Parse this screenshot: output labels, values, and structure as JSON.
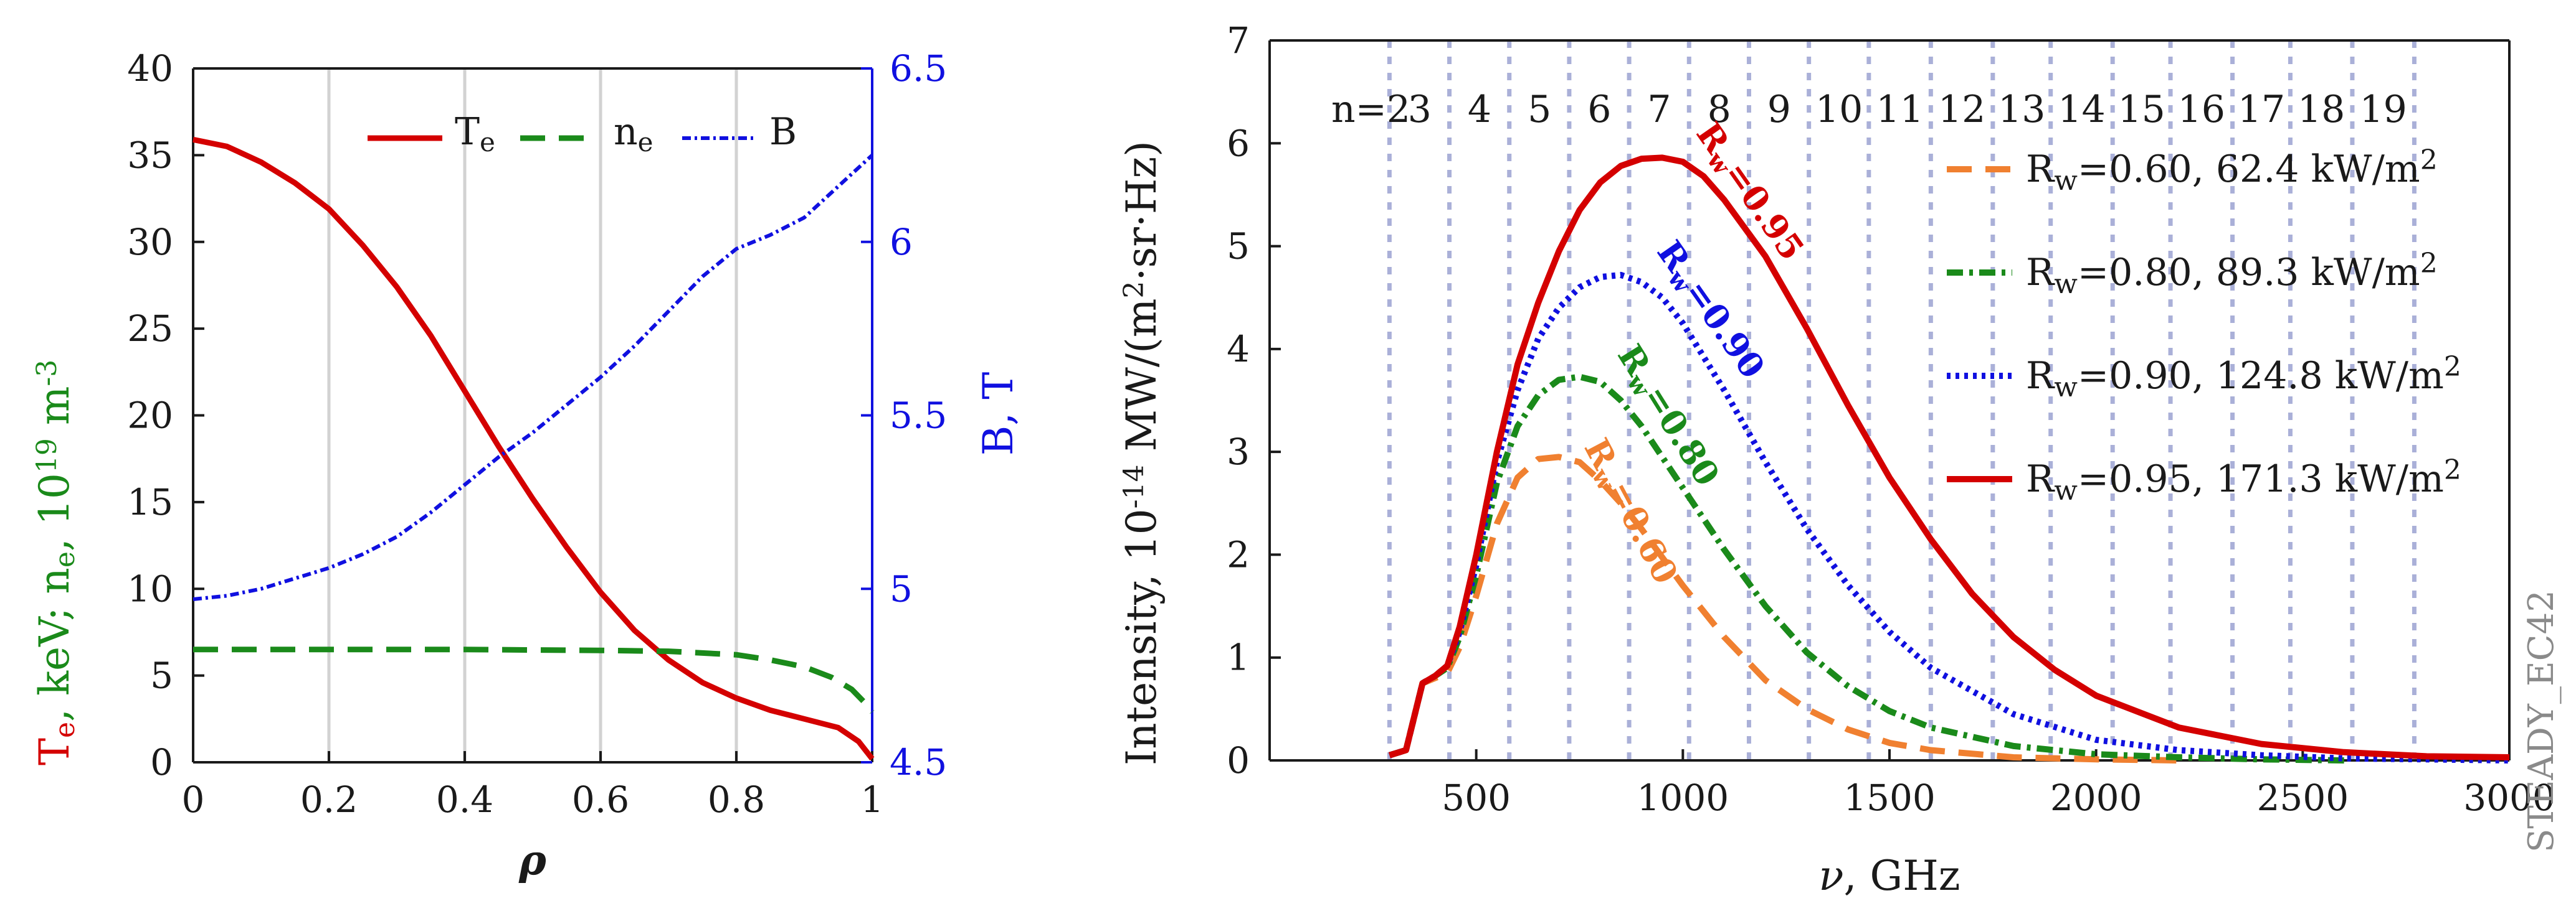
{
  "figure": {
    "watermark": "STEADY_EC42"
  },
  "chart_data": [
    {
      "type": "line",
      "panel": "left",
      "xlabel": "ρ",
      "ylabel_left_parts": [
        "T",
        "e",
        ", keV; n",
        "e",
        ", 10",
        "19",
        " m",
        "-3"
      ],
      "ylabel_left_colors": [
        "#d40000",
        "#d40000",
        "#1a8a1a",
        "#1a8a1a",
        "#1a8a1a",
        "#1a8a1a",
        "#1a8a1a",
        "#1a8a1a"
      ],
      "ylabel_right": "B, T",
      "xlim": [
        0,
        1
      ],
      "ylim": [
        0,
        40
      ],
      "ylim_right": [
        4.5,
        6.5
      ],
      "x_ticks": [
        0,
        0.2,
        0.4,
        0.6,
        0.8,
        1
      ],
      "x_tick_labels": [
        "0",
        "0.2",
        "0.4",
        "0.6",
        "0.8",
        "1"
      ],
      "y_ticks": [
        0,
        5,
        10,
        15,
        20,
        25,
        30,
        35,
        40
      ],
      "y_tick_labels": [
        "0",
        "5",
        "10",
        "15",
        "20",
        "25",
        "30",
        "35",
        "40"
      ],
      "y_ticks_right": [
        4.5,
        5,
        5.5,
        6,
        6.5
      ],
      "y_tick_labels_right": [
        "4.5",
        "5",
        "5.5",
        "6",
        "6.5"
      ],
      "grid_x": [
        0.2,
        0.4,
        0.6,
        0.8
      ],
      "legend": [
        {
          "base": "T",
          "sub": "e",
          "color": "#d40000",
          "dash": "none"
        },
        {
          "base": "n",
          "sub": "e",
          "color": "#1a8a1a",
          "dash": "40,22"
        },
        {
          "base": "B",
          "sub": "",
          "color": "#1010e0",
          "dash": "14,6,4,6"
        }
      ],
      "series": [
        {
          "name": "Te",
          "axis": "left",
          "color": "#d40000",
          "x": [
            0,
            0.05,
            0.1,
            0.15,
            0.2,
            0.25,
            0.3,
            0.35,
            0.4,
            0.45,
            0.5,
            0.55,
            0.6,
            0.65,
            0.7,
            0.75,
            0.8,
            0.85,
            0.9,
            0.95,
            0.98,
            1.0
          ],
          "y": [
            35.9,
            35.5,
            34.6,
            33.4,
            31.9,
            29.8,
            27.4,
            24.6,
            21.4,
            18.2,
            15.2,
            12.4,
            9.8,
            7.6,
            5.9,
            4.6,
            3.7,
            3.0,
            2.5,
            2.0,
            1.2,
            0.2
          ]
        },
        {
          "name": "ne",
          "axis": "left",
          "color": "#1a8a1a",
          "x": [
            0,
            0.2,
            0.4,
            0.6,
            0.7,
            0.8,
            0.85,
            0.9,
            0.94,
            0.97,
            0.99,
            1.0
          ],
          "y": [
            6.5,
            6.5,
            6.5,
            6.45,
            6.4,
            6.2,
            5.9,
            5.5,
            4.9,
            4.2,
            3.4,
            2.9
          ]
        },
        {
          "name": "B",
          "axis": "right",
          "color": "#1010e0",
          "x": [
            0,
            0.05,
            0.1,
            0.15,
            0.2,
            0.25,
            0.3,
            0.35,
            0.4,
            0.45,
            0.5,
            0.55,
            0.6,
            0.65,
            0.7,
            0.75,
            0.8,
            0.85,
            0.9,
            0.95,
            1.0
          ],
          "y": [
            4.97,
            4.98,
            5.0,
            5.03,
            5.06,
            5.1,
            5.15,
            5.22,
            5.3,
            5.38,
            5.45,
            5.53,
            5.61,
            5.7,
            5.8,
            5.9,
            5.98,
            6.02,
            6.07,
            6.16,
            6.25
          ]
        }
      ]
    },
    {
      "type": "line",
      "panel": "right",
      "xlabel": "ν, GHz",
      "ylabel_parts": [
        "Intensity, 10",
        "-14",
        " MW/(m",
        "2",
        "·sr·Hz)"
      ],
      "xlim": [
        0,
        3000
      ],
      "ylim": [
        0,
        7
      ],
      "x_ticks": [
        500,
        1000,
        1500,
        2000,
        2500,
        3000
      ],
      "x_tick_labels": [
        "500",
        "1000",
        "1500",
        "2000",
        "2500",
        "3000"
      ],
      "y_ticks": [
        0,
        1,
        2,
        3,
        4,
        5,
        6,
        7
      ],
      "y_tick_labels": [
        "0",
        "1",
        "2",
        "3",
        "4",
        "5",
        "6",
        "7"
      ],
      "harmonic_lines_x": [
        290,
        435,
        580,
        725,
        870,
        1015,
        1160,
        1305,
        1450,
        1600,
        1750,
        1890,
        2040,
        2180,
        2330,
        2470,
        2620,
        2770
      ],
      "harmonic_labels": [
        {
          "text": "n=2",
          "x": 245
        },
        {
          "text": "3",
          "x": 363
        },
        {
          "text": "4",
          "x": 508
        },
        {
          "text": "5",
          "x": 653
        },
        {
          "text": "6",
          "x": 798
        },
        {
          "text": "7",
          "x": 943
        },
        {
          "text": "8",
          "x": 1088
        },
        {
          "text": "9",
          "x": 1233
        },
        {
          "text": "10",
          "x": 1378
        },
        {
          "text": "11",
          "x": 1525
        },
        {
          "text": "12",
          "x": 1675
        },
        {
          "text": "13",
          "x": 1820
        },
        {
          "text": "14",
          "x": 1965
        },
        {
          "text": "15",
          "x": 2110
        },
        {
          "text": "16",
          "x": 2255
        },
        {
          "text": "17",
          "x": 2400
        },
        {
          "text": "18",
          "x": 2545
        },
        {
          "text": "19",
          "x": 2695
        }
      ],
      "legend": [
        {
          "sym": "R",
          "sub": "w",
          "text": "=0.60, 62.4 kW/m",
          "sup": "2",
          "color": "#f08030",
          "dash": "40,22"
        },
        {
          "sym": "R",
          "sub": "w",
          "text": "=0.80, 89.3 kW/m",
          "sup": "2",
          "color": "#1a8a1a",
          "dash": "26,10,6,10"
        },
        {
          "sym": "R",
          "sub": "w",
          "text": "=0.90, 124.8 kW/m",
          "sup": "2",
          "color": "#1010e0",
          "dash": "6,8"
        },
        {
          "sym": "R",
          "sub": "w",
          "text": "=0.95, 171.3 kW/m",
          "sup": "2",
          "color": "#d40000",
          "dash": "none"
        }
      ],
      "curve_labels": [
        {
          "sym": "R",
          "sub": "w",
          "val": "=0.60",
          "color": "#f08030",
          "x": 760,
          "y": 3.05,
          "angle": 62
        },
        {
          "sym": "R",
          "sub": "w",
          "val": "=0.80",
          "color": "#1a8a1a",
          "x": 840,
          "y": 3.95,
          "angle": 58
        },
        {
          "sym": "R",
          "sub": "w",
          "val": "=0.90",
          "color": "#1010e0",
          "x": 935,
          "y": 4.95,
          "angle": 55
        },
        {
          "sym": "R",
          "sub": "w",
          "val": "=0.95",
          "color": "#d40000",
          "x": 1030,
          "y": 6.1,
          "angle": 55
        }
      ],
      "series": [
        {
          "name": "Rw=0.60",
          "color": "#f08030",
          "x": [
            290,
            330,
            370,
            400,
            430,
            460,
            500,
            550,
            600,
            650,
            700,
            750,
            800,
            850,
            900,
            1000,
            1100,
            1200,
            1300,
            1400,
            1500,
            1600,
            1800,
            2000,
            2200
          ],
          "y": [
            0.05,
            0.1,
            0.75,
            0.8,
            0.85,
            1.1,
            1.6,
            2.3,
            2.75,
            2.93,
            2.95,
            2.9,
            2.72,
            2.5,
            2.25,
            1.7,
            1.2,
            0.78,
            0.5,
            0.3,
            0.17,
            0.1,
            0.03,
            0.01,
            0.0
          ]
        },
        {
          "name": "Rw=0.80",
          "color": "#1a8a1a",
          "x": [
            290,
            330,
            370,
            400,
            430,
            460,
            500,
            550,
            600,
            650,
            700,
            750,
            800,
            850,
            900,
            1000,
            1100,
            1200,
            1300,
            1400,
            1500,
            1600,
            1800,
            2000,
            2200,
            2400,
            2600
          ],
          "y": [
            0.05,
            0.1,
            0.75,
            0.82,
            0.9,
            1.2,
            1.8,
            2.7,
            3.25,
            3.55,
            3.7,
            3.73,
            3.68,
            3.5,
            3.25,
            2.65,
            2.05,
            1.5,
            1.05,
            0.72,
            0.48,
            0.32,
            0.14,
            0.06,
            0.03,
            0.01,
            0.0
          ]
        },
        {
          "name": "Rw=0.90",
          "color": "#1010e0",
          "x": [
            290,
            330,
            370,
            400,
            430,
            460,
            500,
            550,
            600,
            650,
            700,
            750,
            800,
            850,
            900,
            950,
            1000,
            1100,
            1200,
            1300,
            1400,
            1500,
            1600,
            1800,
            2000,
            2200,
            2400,
            2600,
            2800,
            3000
          ],
          "y": [
            0.05,
            0.1,
            0.75,
            0.82,
            0.92,
            1.25,
            1.9,
            2.9,
            3.6,
            4.1,
            4.4,
            4.6,
            4.7,
            4.72,
            4.65,
            4.5,
            4.25,
            3.6,
            2.9,
            2.25,
            1.7,
            1.25,
            0.9,
            0.45,
            0.2,
            0.1,
            0.05,
            0.02,
            0.01,
            0.0
          ]
        },
        {
          "name": "Rw=0.95",
          "color": "#d40000",
          "x": [
            290,
            330,
            370,
            400,
            430,
            460,
            500,
            550,
            600,
            650,
            700,
            750,
            800,
            850,
            900,
            950,
            1000,
            1050,
            1100,
            1200,
            1300,
            1400,
            1500,
            1600,
            1700,
            1800,
            1900,
            2000,
            2200,
            2400,
            2600,
            2800,
            3000
          ],
          "y": [
            0.05,
            0.1,
            0.75,
            0.82,
            0.92,
            1.3,
            2.0,
            3.0,
            3.85,
            4.45,
            4.95,
            5.35,
            5.62,
            5.78,
            5.85,
            5.86,
            5.82,
            5.68,
            5.45,
            4.9,
            4.2,
            3.45,
            2.75,
            2.15,
            1.62,
            1.2,
            0.88,
            0.63,
            0.32,
            0.16,
            0.08,
            0.04,
            0.03
          ]
        }
      ]
    }
  ]
}
